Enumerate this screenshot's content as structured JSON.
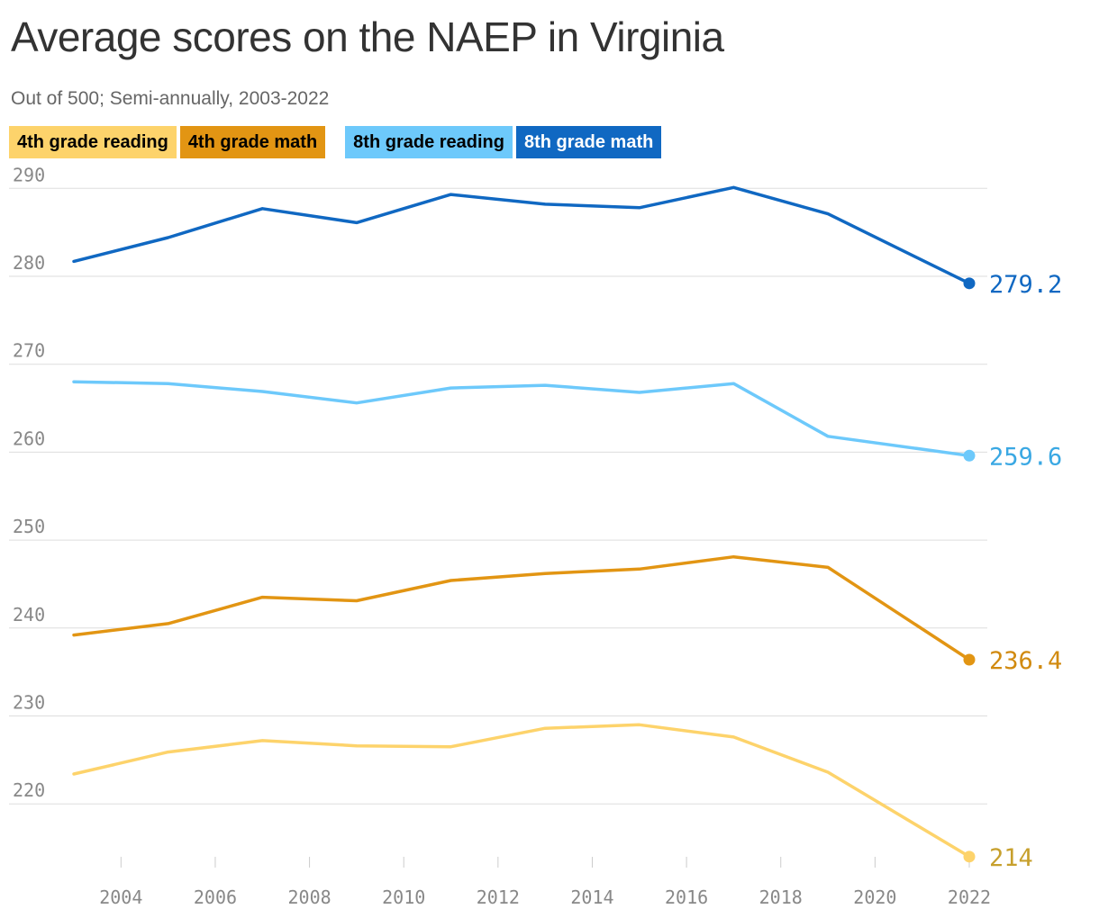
{
  "title": "Average scores on the NAEP in Virginia",
  "subtitle": "Out of 500; Semi-annually, 2003-2022",
  "legend": [
    {
      "label": "4th grade reading",
      "color": "#fdd36b",
      "text_color": "#000000"
    },
    {
      "label": "4th grade math",
      "color": "#e29513",
      "text_color": "#000000"
    },
    {
      "label": "8th grade reading",
      "color": "#6dc9fb",
      "text_color": "#000000"
    },
    {
      "label": "8th grade math",
      "color": "#1068c2",
      "text_color": "#ffffff"
    }
  ],
  "chart_data": {
    "type": "line",
    "title": "Average scores on the NAEP in Virginia",
    "subtitle": "Out of 500; Semi-annually, 2003-2022",
    "x": [
      2003,
      2005,
      2007,
      2009,
      2011,
      2013,
      2015,
      2017,
      2019,
      2022
    ],
    "xticks": [
      2004,
      2006,
      2008,
      2010,
      2012,
      2014,
      2016,
      2018,
      2020,
      2022
    ],
    "yticks": [
      220,
      230,
      240,
      250,
      260,
      270,
      280,
      290
    ],
    "xlim": [
      2003,
      2022
    ],
    "ylim": [
      213,
      290
    ],
    "grid": true,
    "series": [
      {
        "name": "8th grade math",
        "color": "#1068c2",
        "label_color": "#1068c2",
        "end_label": "279.2",
        "values": [
          281.7,
          284.4,
          287.7,
          286.1,
          289.3,
          288.2,
          287.8,
          290.1,
          287.1,
          279.2
        ]
      },
      {
        "name": "8th grade reading",
        "color": "#6dc9fb",
        "label_color": "#3aa8e3",
        "end_label": "259.6",
        "values": [
          268.0,
          267.8,
          266.9,
          265.6,
          267.3,
          267.6,
          266.8,
          267.8,
          261.8,
          259.6
        ]
      },
      {
        "name": "4th grade math",
        "color": "#e29513",
        "label_color": "#d18a0f",
        "end_label": "236.4",
        "values": [
          239.2,
          240.5,
          243.5,
          243.1,
          245.4,
          246.2,
          246.7,
          248.1,
          246.9,
          236.4
        ]
      },
      {
        "name": "4th grade reading",
        "color": "#fdd36b",
        "label_color": "#c7a02d",
        "end_label": "214",
        "values": [
          223.4,
          225.9,
          227.2,
          226.6,
          226.5,
          228.6,
          229.0,
          227.6,
          223.6,
          214.0
        ]
      }
    ]
  }
}
